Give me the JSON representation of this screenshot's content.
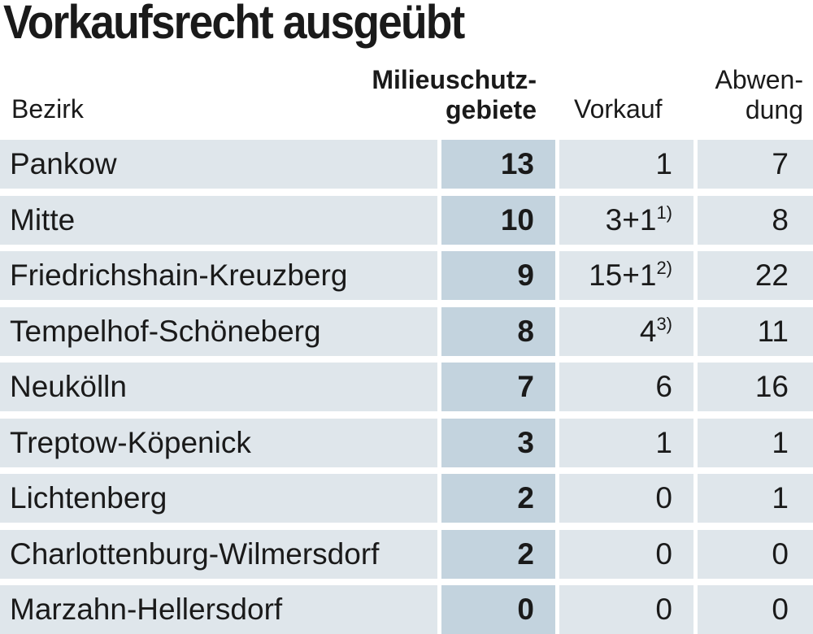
{
  "title": "Vorkaufsrecht ausgeübt",
  "table": {
    "headers": {
      "district": "Bezirk",
      "milieu": [
        "Milieuschutz-",
        "gebiete"
      ],
      "purchase": "Vorkauf",
      "averting": [
        "Abwen-",
        "dung"
      ]
    },
    "rows": [
      {
        "district": "Pankow",
        "milieu": 13,
        "purchase": "1",
        "averting": 7
      },
      {
        "district": "Mitte",
        "milieu": 10,
        "purchase": "3+1",
        "note": "1)",
        "averting": 8
      },
      {
        "district": "Friedrichshain-Kreuzberg",
        "milieu": 9,
        "purchase": "15+1",
        "note": "2)",
        "averting": 22
      },
      {
        "district": "Tempelhof-Schöneberg",
        "milieu": 8,
        "purchase": "4",
        "note": "3)",
        "averting": 11
      },
      {
        "district": "Neukölln",
        "milieu": 7,
        "purchase": "6",
        "averting": 16
      },
      {
        "district": "Treptow-Köpenick",
        "milieu": 3,
        "purchase": "1",
        "averting": 1
      },
      {
        "district": "Lichtenberg",
        "milieu": 2,
        "purchase": "0",
        "averting": 1
      },
      {
        "district": "Charlottenburg-Wilmersdorf",
        "milieu": 2,
        "purchase": "0",
        "averting": 0
      },
      {
        "district": "Marzahn-Hellersdorf",
        "milieu": 0,
        "purchase": "0",
        "averting": 0
      }
    ]
  }
}
